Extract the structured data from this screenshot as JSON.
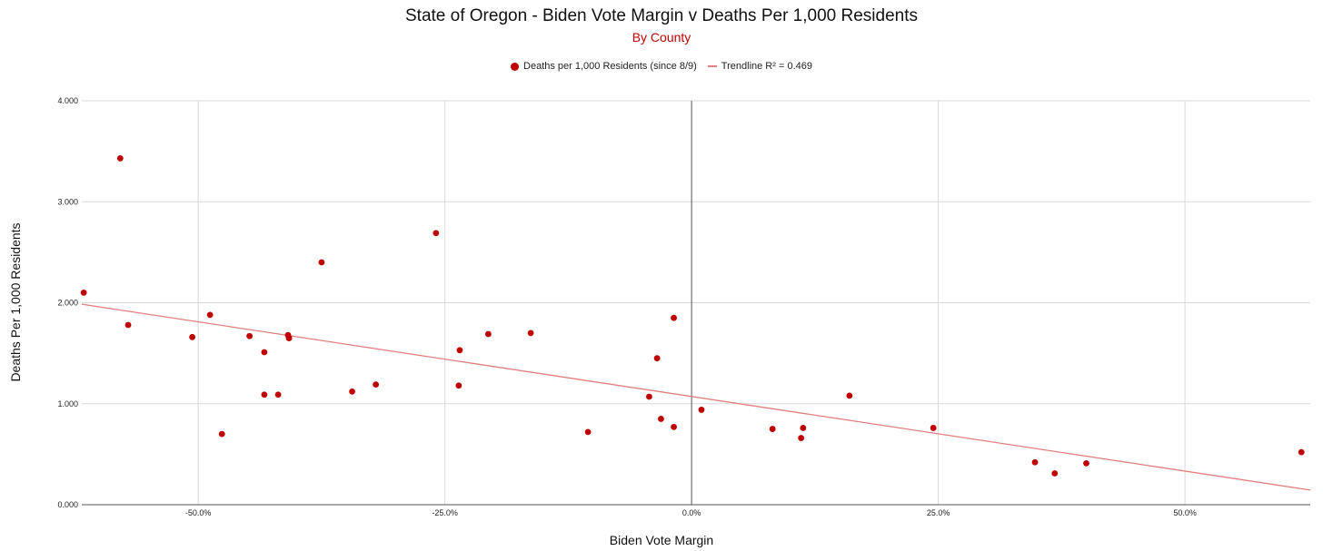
{
  "chart_data": {
    "type": "scatter",
    "title": "State of Oregon - Biden Vote Margin v Deaths Per 1,000 Residents",
    "subtitle": "By County",
    "xlabel": "Biden Vote Margin",
    "ylabel": "Deaths Per 1,000 Residents",
    "xlim": [
      -0.618,
      0.627
    ],
    "ylim": [
      0,
      4
    ],
    "x_ticks": [
      -0.5,
      -0.25,
      0,
      0.25,
      0.5
    ],
    "x_tick_labels": [
      "-50.0%",
      "-25.0%",
      "0.0%",
      "25.0%",
      "50.0%"
    ],
    "y_ticks": [
      0,
      1,
      2,
      3,
      4
    ],
    "y_tick_labels": [
      "0.000",
      "1.000",
      "2.000",
      "3.000",
      "4.000"
    ],
    "grid": true,
    "legend_position": "top",
    "series": [
      {
        "name": "Deaths per 1,000 Residents (since 8/9)",
        "color": "#c00000",
        "x": [
          -0.616,
          -0.579,
          -0.571,
          -0.506,
          -0.488,
          -0.476,
          -0.448,
          -0.433,
          -0.433,
          -0.419,
          -0.409,
          -0.408,
          -0.408,
          -0.375,
          -0.344,
          -0.32,
          -0.259,
          -0.235,
          -0.236,
          -0.206,
          -0.163,
          -0.105,
          -0.043,
          -0.035,
          -0.031,
          -0.018,
          -0.018,
          0.01,
          0.082,
          0.111,
          0.113,
          0.16,
          0.245,
          0.348,
          0.368,
          0.4,
          0.618
        ],
        "y": [
          2.1,
          3.43,
          1.78,
          1.66,
          1.88,
          0.7,
          1.67,
          1.51,
          1.09,
          1.09,
          1.68,
          1.65,
          1.65,
          2.4,
          1.12,
          1.19,
          2.69,
          1.53,
          1.18,
          1.69,
          1.7,
          0.72,
          1.07,
          1.45,
          0.85,
          1.85,
          0.77,
          0.94,
          0.75,
          0.66,
          0.76,
          1.08,
          0.76,
          0.42,
          0.31,
          0.41,
          0.52
        ]
      }
    ],
    "trendline": {
      "name": "Trendline R² = 0.469",
      "color": "#e07f7f",
      "x": [
        -0.618,
        0.627
      ],
      "y": [
        1.985,
        0.145
      ]
    }
  }
}
